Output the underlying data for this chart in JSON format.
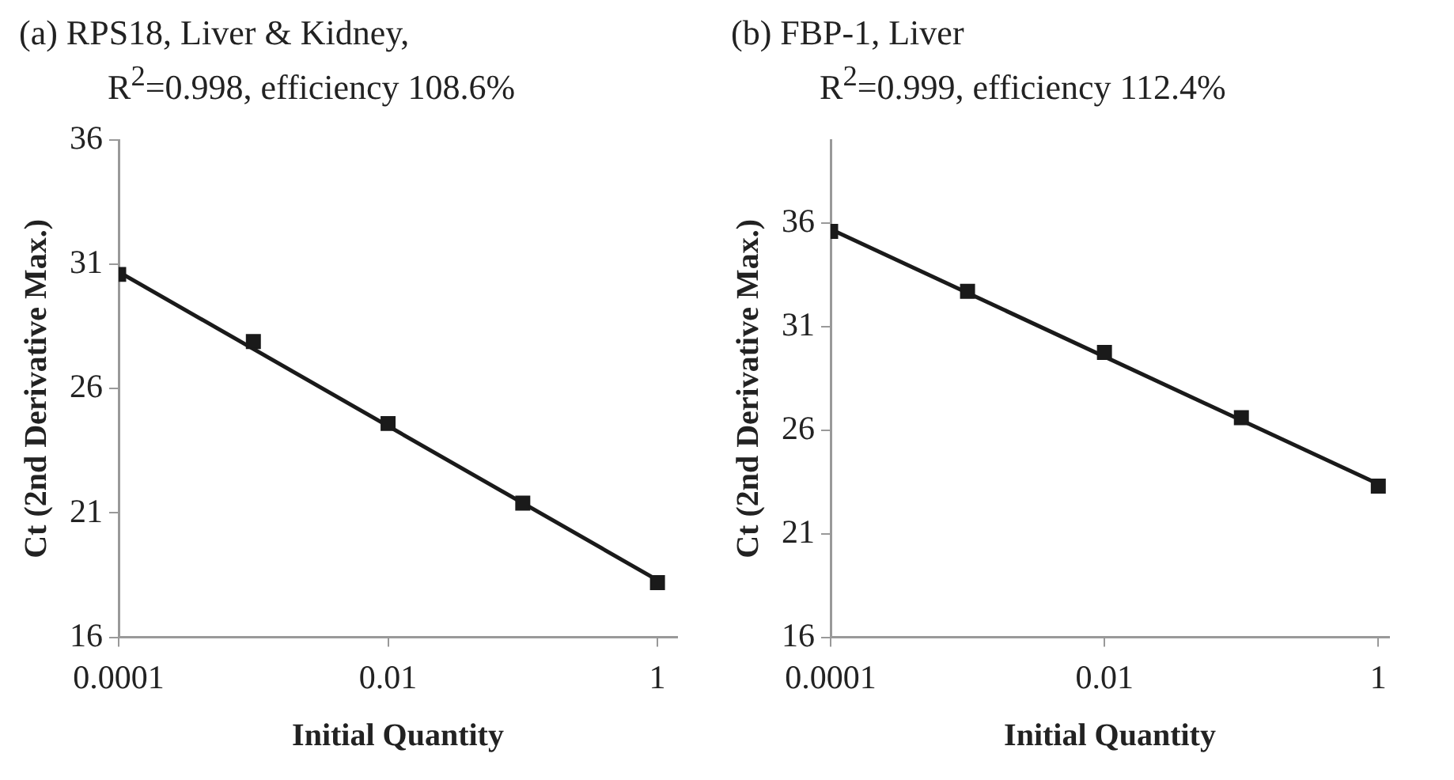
{
  "chart_data": [
    {
      "type": "scatter",
      "title": "(a) RPS18, Liver & Kidney,",
      "subtitle": "R$^{2}$=0.998, efficiency 108.6%",
      "xlabel": "Initial Quantity",
      "ylabel": "Ct (2nd Derivative Max.)",
      "log": "x",
      "xlim": [
        0.0001,
        1.4
      ],
      "xticks": [
        0.0001,
        0.01,
        1
      ],
      "ylim": [
        16,
        36
      ],
      "yticks": [
        16,
        21,
        26,
        31,
        36
      ],
      "legend": false,
      "series": [
        {
          "type": "scatter",
          "marker": "square",
          "color": "#1a1a1a",
          "x": [
            0.0001,
            0.001,
            0.01,
            0.1,
            1
          ],
          "values": [
            30.6,
            27.9,
            24.6,
            21.4,
            18.2
          ]
        },
        {
          "type": "line",
          "marker": "none",
          "color": "#1a1a1a",
          "line_style": "solid",
          "x": [
            0.0001,
            1
          ],
          "values": [
            30.7,
            18.3
          ]
        }
      ]
    },
    {
      "type": "scatter",
      "title": "(b) FBP-1, Liver",
      "subtitle": "R$^{2}$=0.999, efficiency 112.4%",
      "xlabel": "Initial Quantity",
      "ylabel": "Ct (2nd Derivative Max.)",
      "log": "x",
      "xlim": [
        0.0001,
        1.2
      ],
      "xticks": [
        0.0001,
        0.01,
        1
      ],
      "ylim": [
        16,
        40
      ],
      "yticks": [
        16,
        21,
        26,
        31,
        36
      ],
      "legend": false,
      "series": [
        {
          "type": "scatter",
          "marker": "square",
          "color": "#1a1a1a",
          "x": [
            0.0001,
            0.001,
            0.01,
            0.1,
            1
          ],
          "values": [
            35.6,
            32.7,
            29.75,
            26.6,
            23.3
          ]
        },
        {
          "type": "line",
          "marker": "none",
          "color": "#1a1a1a",
          "line_style": "solid",
          "x": [
            0.0001,
            1
          ],
          "values": [
            35.7,
            23.4
          ]
        }
      ]
    }
  ]
}
